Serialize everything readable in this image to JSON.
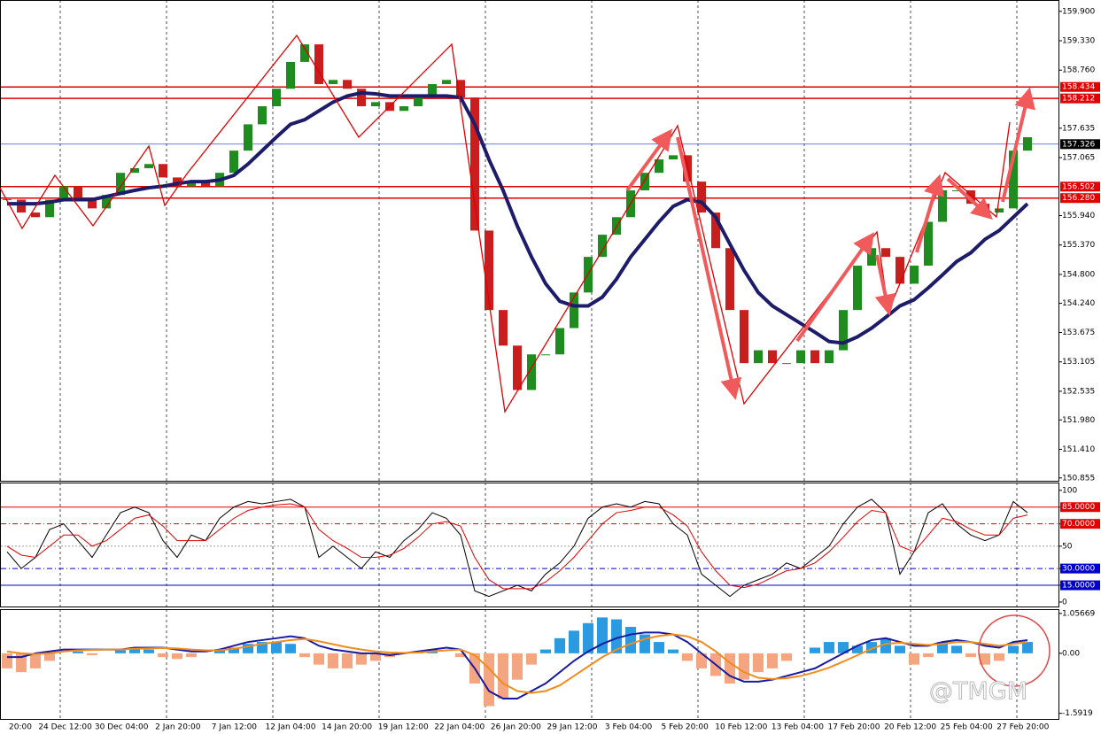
{
  "chart_data": [
    {
      "type": "candlestick",
      "values": [
        156.25,
        156.0,
        155.91,
        156.25,
        156.51,
        156.25,
        156.08,
        156.34,
        156.77,
        156.86,
        156.94,
        156.68,
        156.51,
        156.6,
        156.51,
        156.77,
        157.2,
        157.71,
        158.06,
        158.4,
        158.92,
        159.26,
        158.49,
        158.57,
        158.4,
        158.06,
        158.14,
        157.97,
        158.06,
        158.23,
        158.49,
        158.57,
        158.23,
        155.65,
        154.11,
        153.42,
        152.56,
        153.25,
        153.25,
        153.76,
        154.45,
        155.14,
        155.57,
        155.91,
        156.43,
        156.77,
        157.03,
        157.11,
        156.6,
        156.0,
        155.31,
        154.11,
        153.08,
        153.33,
        153.08,
        153.08,
        153.33,
        153.08,
        153.33,
        154.11,
        154.97,
        155.31,
        155.14,
        154.62,
        154.97,
        155.82,
        156.43,
        156.43,
        156.17,
        156.0,
        156.08,
        157.2,
        157.46
      ],
      "up_color": "#1e8c1e",
      "down_color": "#c81e1e",
      "ma": {
        "color": "#1c1c6b",
        "values": [
          156.17,
          156.17,
          156.17,
          156.2,
          156.25,
          156.25,
          156.25,
          156.31,
          156.37,
          156.43,
          156.48,
          156.51,
          156.56,
          156.6,
          156.6,
          156.63,
          156.72,
          156.94,
          157.2,
          157.46,
          157.71,
          157.8,
          157.97,
          158.14,
          158.26,
          158.32,
          158.3,
          158.26,
          158.26,
          158.26,
          158.26,
          158.26,
          158.23,
          157.71,
          157.03,
          156.43,
          155.74,
          155.14,
          154.62,
          154.28,
          154.19,
          154.19,
          154.36,
          154.71,
          155.14,
          155.48,
          155.82,
          156.12,
          156.25,
          156.2,
          155.91,
          155.39,
          154.88,
          154.45,
          154.19,
          154.02,
          153.85,
          153.68,
          153.5,
          153.47,
          153.59,
          153.76,
          153.97,
          154.19,
          154.31,
          154.54,
          154.79,
          155.05,
          155.22,
          155.48,
          155.65,
          155.91,
          156.17
        ]
      },
      "ylim": [
        150.8,
        160.12
      ],
      "yticks": [
        {
          "value": 159.9,
          "label": "159.900"
        },
        {
          "value": 159.33,
          "label": "159.330"
        },
        {
          "value": 158.76,
          "label": "158.760"
        },
        {
          "value": 157.635,
          "label": "157.635"
        },
        {
          "value": 157.065,
          "label": "157.065"
        },
        {
          "value": 155.94,
          "label": "155.940"
        },
        {
          "value": 155.37,
          "label": "155.370"
        },
        {
          "value": 154.8,
          "label": "154.800"
        },
        {
          "value": 154.24,
          "label": "154.240"
        },
        {
          "value": 153.675,
          "label": "153.675"
        },
        {
          "value": 153.105,
          "label": "153.105"
        },
        {
          "value": 152.535,
          "label": "152.535"
        },
        {
          "value": 151.98,
          "label": "151.980"
        },
        {
          "value": 151.41,
          "label": "151.410"
        },
        {
          "value": 150.855,
          "label": "150.855"
        }
      ],
      "levels": [
        {
          "value": 158.434,
          "label": "158.434",
          "color": "#e00000",
          "line_color": "#e00000"
        },
        {
          "value": 158.212,
          "label": "158.212",
          "color": "#e00000",
          "line_color": "#e00000"
        },
        {
          "value": 157.326,
          "label": "157.326",
          "color": "#000000",
          "line_color": "#3355cc"
        },
        {
          "value": 156.502,
          "label": "156.502",
          "color": "#e00000",
          "line_color": "#e00000"
        },
        {
          "value": 156.28,
          "label": "156.280",
          "color": "#e00000",
          "line_color": "#e00000"
        }
      ]
    },
    {
      "type": "line",
      "series": [
        {
          "color": "#000000",
          "values": [
            45,
            30,
            40,
            65,
            70,
            55,
            40,
            60,
            80,
            85,
            80,
            55,
            40,
            60,
            55,
            75,
            85,
            90,
            88,
            90,
            92,
            85,
            40,
            50,
            40,
            30,
            45,
            40,
            55,
            65,
            80,
            75,
            60,
            10,
            5,
            10,
            15,
            10,
            25,
            35,
            50,
            75,
            85,
            88,
            85,
            90,
            88,
            70,
            60,
            25,
            15,
            5,
            15,
            20,
            25,
            35,
            30,
            40,
            50,
            70,
            85,
            92,
            80,
            25,
            45,
            80,
            88,
            70,
            60,
            55,
            60,
            90,
            80
          ]
        },
        {
          "color": "#e00000",
          "values": [
            50,
            42,
            40,
            50,
            60,
            60,
            50,
            55,
            65,
            75,
            78,
            68,
            55,
            55,
            55,
            65,
            75,
            82,
            85,
            87,
            88,
            85,
            65,
            55,
            48,
            40,
            40,
            42,
            48,
            58,
            70,
            72,
            68,
            40,
            20,
            12,
            12,
            12,
            18,
            28,
            40,
            55,
            70,
            80,
            82,
            85,
            85,
            78,
            68,
            45,
            28,
            15,
            13,
            16,
            22,
            28,
            30,
            35,
            45,
            58,
            72,
            82,
            80,
            50,
            45,
            60,
            75,
            72,
            65,
            60,
            60,
            75,
            78
          ]
        }
      ],
      "ylim": [
        -4,
        107
      ],
      "yticks": [
        100,
        {
          "value": 85,
          "label": "85.0000",
          "color": "#e00000",
          "style": "solid"
        },
        {
          "value": 70,
          "label": "70.0000",
          "color": "#e00000",
          "style": "dashdot"
        },
        50,
        {
          "value": 30,
          "label": "30.0000",
          "color": "#0000cc",
          "style": "dashdot"
        },
        {
          "value": 15,
          "label": "15.0000",
          "color": "#0000cc",
          "style": "solid"
        },
        0
      ]
    },
    {
      "type": "macd",
      "values": [
        -0.4,
        -0.5,
        -0.4,
        -0.2,
        0,
        0.05,
        -0.05,
        0,
        0.1,
        0.15,
        0.1,
        -0.1,
        -0.15,
        -0.1,
        0,
        0.1,
        0.15,
        0.25,
        0.3,
        0.3,
        0.25,
        -0.1,
        -0.3,
        -0.4,
        -0.4,
        -0.3,
        -0.2,
        -0.1,
        0,
        0.05,
        0.1,
        0,
        -0.1,
        -0.8,
        -1.4,
        -1.2,
        -0.7,
        -0.3,
        0.1,
        0.4,
        0.6,
        0.8,
        0.95,
        0.9,
        0.7,
        0.5,
        0.3,
        0.1,
        -0.2,
        -0.4,
        -0.6,
        -0.8,
        -0.7,
        -0.5,
        -0.4,
        -0.2,
        0,
        0.15,
        0.3,
        0.3,
        0.2,
        0.3,
        0.4,
        0.2,
        -0.3,
        -0.1,
        0.3,
        0.2,
        -0.1,
        -0.3,
        -0.2,
        0.2,
        0.3
      ],
      "up_color": "#2a9be0",
      "down_color": "#f4a582",
      "series": [
        {
          "color": "#1a1aa0",
          "values": [
            -0.1,
            -0.1,
            0,
            0.05,
            0.1,
            0.1,
            0.1,
            0.1,
            0.1,
            0.15,
            0.15,
            0.15,
            0.1,
            0.05,
            0.05,
            0.1,
            0.2,
            0.3,
            0.35,
            0.4,
            0.45,
            0.4,
            0.2,
            0.1,
            0.05,
            0,
            0,
            -0.05,
            0,
            0.05,
            0.1,
            0.15,
            0.1,
            -0.4,
            -1.0,
            -1.2,
            -1.2,
            -1.0,
            -0.8,
            -0.5,
            -0.2,
            0.05,
            0.25,
            0.4,
            0.5,
            0.55,
            0.55,
            0.5,
            0.3,
            0,
            -0.3,
            -0.6,
            -0.75,
            -0.75,
            -0.7,
            -0.6,
            -0.5,
            -0.4,
            -0.2,
            0,
            0.2,
            0.35,
            0.4,
            0.3,
            0.2,
            0.2,
            0.3,
            0.35,
            0.3,
            0.2,
            0.15,
            0.3,
            0.35
          ]
        },
        {
          "color": "#f08c1e",
          "values": [
            0.05,
            0,
            -0.02,
            0,
            0.05,
            0.08,
            0.09,
            0.1,
            0.1,
            0.12,
            0.13,
            0.14,
            0.13,
            0.1,
            0.08,
            0.08,
            0.12,
            0.18,
            0.25,
            0.3,
            0.35,
            0.38,
            0.32,
            0.24,
            0.16,
            0.1,
            0.05,
            0.02,
            0.01,
            0.02,
            0.05,
            0.08,
            0.1,
            -0.05,
            -0.4,
            -0.8,
            -1.0,
            -1.05,
            -1.0,
            -0.85,
            -0.6,
            -0.35,
            -0.1,
            0.1,
            0.25,
            0.38,
            0.46,
            0.5,
            0.45,
            0.3,
            0.05,
            -0.25,
            -0.5,
            -0.65,
            -0.68,
            -0.66,
            -0.6,
            -0.5,
            -0.38,
            -0.22,
            -0.05,
            0.12,
            0.25,
            0.28,
            0.25,
            0.22,
            0.25,
            0.3,
            0.3,
            0.25,
            0.2,
            0.25,
            0.3
          ]
        }
      ],
      "ylim": [
        -1.74,
        1.17
      ],
      "yticks": [
        1.05669,
        {
          "value": 0,
          "label": "0.00"
        },
        -1.5919
      ],
      "xtick_labels": [
        "20:00",
        "24 Dec 12:00",
        "30 Dec 04:00",
        "2 Jan 20:00",
        "7 Jan 12:00",
        "12 Jan 04:00",
        "14 Jan 20:00",
        "19 Jan 12:00",
        "22 Jan 04:00",
        "26 Jan 20:00",
        "29 Jan 12:00",
        "3 Feb 04:00",
        "5 Feb 20:00",
        "10 Feb 12:00",
        "13 Feb 04:00",
        "17 Feb 20:00",
        "20 Feb 12:00",
        "25 Feb 04:00",
        "27 Feb 20:00"
      ]
    }
  ],
  "watermark": "@TMGM"
}
